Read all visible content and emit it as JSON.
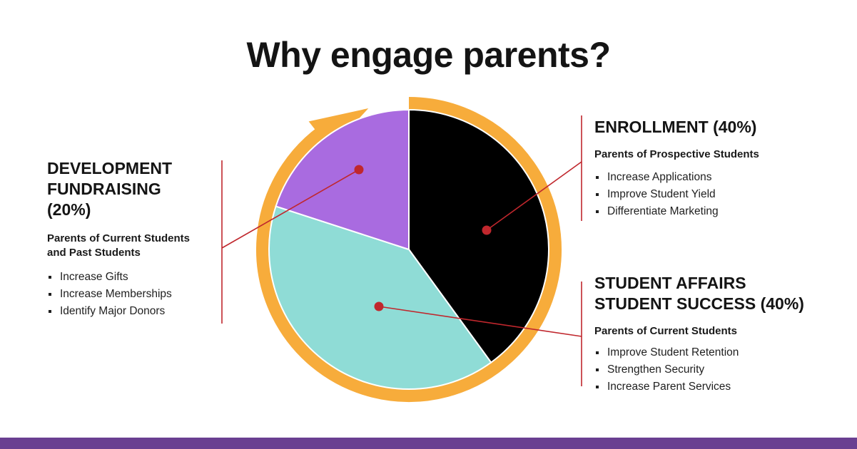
{
  "title": "Why engage parents?",
  "colors": {
    "enrollment": "#000000",
    "student_affairs": "#8fdcd6",
    "development": "#a96be0",
    "ring": "#f7ac3b",
    "leader": "#c0272d",
    "footer": "#6a3f91"
  },
  "chart_data": {
    "type": "pie",
    "title": "Why engage parents?",
    "categories": [
      "ENROLLMENT (40%)",
      "STUDENT AFFAIRS STUDENT SUCCESS (40%)",
      "DEVELOPMENT FUNDRAISING (20%)"
    ],
    "values": [
      40,
      40,
      20
    ],
    "start": "12 o'clock, clockwise",
    "decoration": "orange circular arrow around pie"
  },
  "sections": {
    "development": {
      "head": [
        "DEVELOPMENT",
        "FUNDRAISING",
        "(20%)"
      ],
      "sub": [
        "Parents of Current Students",
        "and Past Students"
      ],
      "items": [
        "Increase Gifts",
        "Increase Memberships",
        "Identify Major Donors"
      ]
    },
    "enrollment": {
      "head": [
        "ENROLLMENT (40%)"
      ],
      "sub": [
        "Parents of Prospective Students"
      ],
      "items": [
        "Increase Applications",
        "Improve Student Yield",
        "Differentiate Marketing"
      ]
    },
    "student_affairs": {
      "head": [
        "STUDENT AFFAIRS",
        "STUDENT SUCCESS (40%)"
      ],
      "sub": [
        "Parents of Current Students"
      ],
      "items": [
        "Improve Student Retention",
        "Strengthen Security",
        "Increase Parent Services"
      ]
    }
  }
}
